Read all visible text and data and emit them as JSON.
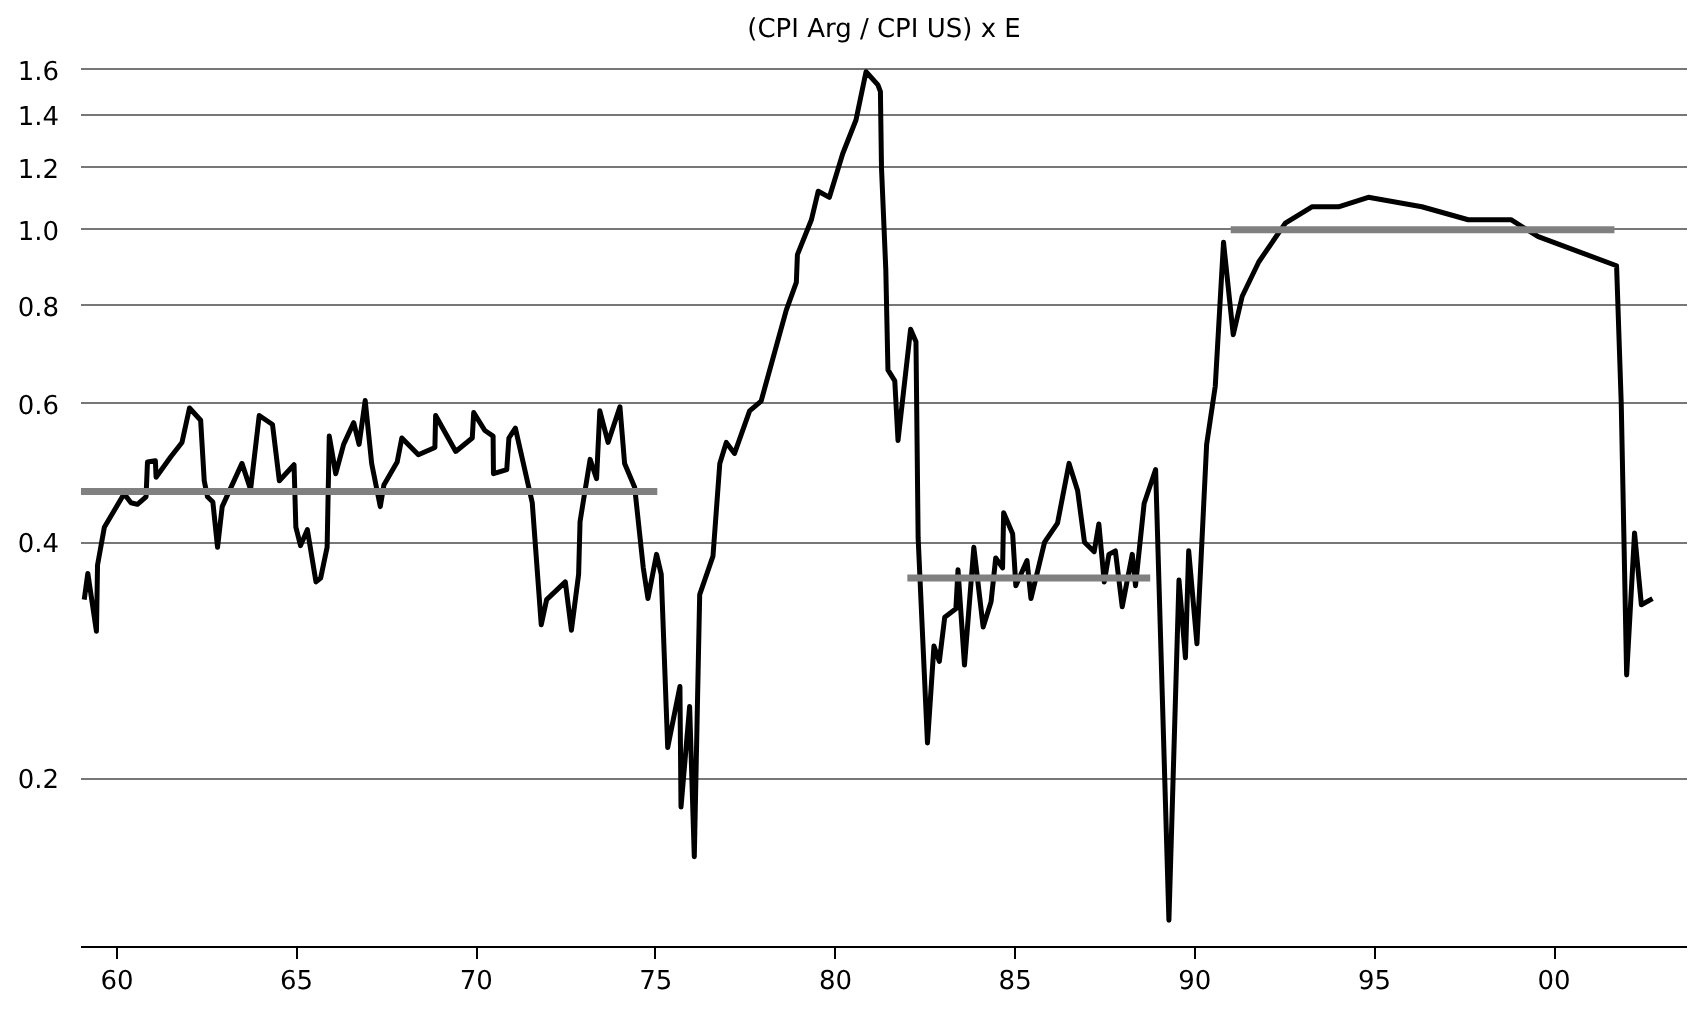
{
  "chart_data": {
    "type": "line",
    "title": "(CPI Arg / CPI US) x E",
    "log": "y",
    "grid": "y",
    "marker": "none",
    "line_style": "solid",
    "xlim": [
      1959.0,
      2003.7
    ],
    "ylim": [
      0.122,
      1.67
    ],
    "xticks": [
      {
        "value": 1960,
        "label": "60"
      },
      {
        "value": 1965,
        "label": "65"
      },
      {
        "value": 1970,
        "label": "70"
      },
      {
        "value": 1975,
        "label": "75"
      },
      {
        "value": 1980,
        "label": "80"
      },
      {
        "value": 1985,
        "label": "85"
      },
      {
        "value": 1990,
        "label": "90"
      },
      {
        "value": 1995,
        "label": "95"
      },
      {
        "value": 2000,
        "label": "00"
      }
    ],
    "yticks": [
      0.2,
      0.4,
      0.6,
      0.8,
      {
        "value": 1.0,
        "label": "1.0"
      },
      1.2,
      1.4,
      1.6
    ],
    "series": [
      {
        "color": "#000000",
        "x": [
          1959.09,
          1959.19,
          1959.43,
          1959.46,
          1959.65,
          1960.2,
          1960.39,
          1960.57,
          1960.81,
          1960.85,
          1961.07,
          1961.09,
          1961.5,
          1961.81,
          1962.02,
          1962.33,
          1962.43,
          1962.52,
          1962.67,
          1962.8,
          1962.93,
          1963.48,
          1963.72,
          1963.96,
          1964.33,
          1964.52,
          1964.93,
          1964.98,
          1965.11,
          1965.3,
          1965.54,
          1965.67,
          1965.85,
          1965.91,
          1966.09,
          1966.31,
          1966.59,
          1966.74,
          1966.91,
          1967.09,
          1967.33,
          1967.43,
          1967.8,
          1967.93,
          1968.39,
          1968.85,
          1968.87,
          1969.43,
          1969.89,
          1969.93,
          1970.24,
          1970.47,
          1970.48,
          1970.85,
          1970.91,
          1971.09,
          1971.56,
          1971.81,
          1971.96,
          1972.48,
          1972.65,
          1972.85,
          1972.89,
          1973.17,
          1973.35,
          1973.44,
          1973.67,
          1974.0,
          1974.13,
          1974.41,
          1974.65,
          1974.78,
          1975.02,
          1975.15,
          1975.33,
          1975.67,
          1975.7,
          1975.94,
          1976.07,
          1976.22,
          1976.59,
          1976.78,
          1976.96,
          1977.19,
          1977.61,
          1977.93,
          1978.63,
          1978.91,
          1978.94,
          1979.33,
          1979.52,
          1979.83,
          1980.2,
          1980.57,
          1980.85,
          1981.18,
          1981.25,
          1981.28,
          1981.4,
          1981.46,
          1981.65,
          1981.74,
          1982.09,
          1982.24,
          1982.3,
          1982.56,
          1982.74,
          1982.89,
          1983.04,
          1983.35,
          1983.41,
          1983.59,
          1983.85,
          1984.11,
          1984.33,
          1984.46,
          1984.65,
          1984.68,
          1984.93,
          1985.02,
          1985.33,
          1985.44,
          1985.82,
          1986.18,
          1986.5,
          1986.74,
          1986.93,
          1987.2,
          1987.33,
          1987.48,
          1987.61,
          1987.79,
          1987.98,
          1988.26,
          1988.35,
          1988.59,
          1988.91,
          1989.28,
          1989.56,
          1989.74,
          1989.83,
          1990.06,
          1990.33,
          1990.57,
          1990.8,
          1991.07,
          1991.32,
          1991.78,
          1992.52,
          1993.26,
          1994.0,
          1994.83,
          1996.32,
          1997.61,
          1998.8,
          1999.56,
          2001.74,
          2001.87,
          2002.02,
          2002.24,
          2002.43,
          2002.74
        ],
        "values": [
          0.338,
          0.365,
          0.308,
          0.374,
          0.418,
          0.461,
          0.449,
          0.447,
          0.457,
          0.506,
          0.508,
          0.484,
          0.514,
          0.536,
          0.593,
          0.572,
          0.479,
          0.457,
          0.45,
          0.394,
          0.444,
          0.504,
          0.467,
          0.58,
          0.565,
          0.479,
          0.502,
          0.418,
          0.396,
          0.415,
          0.356,
          0.36,
          0.394,
          0.546,
          0.489,
          0.533,
          0.568,
          0.533,
          0.606,
          0.504,
          0.444,
          0.473,
          0.506,
          0.543,
          0.517,
          0.528,
          0.58,
          0.522,
          0.543,
          0.585,
          0.555,
          0.546,
          0.489,
          0.495,
          0.543,
          0.559,
          0.449,
          0.314,
          0.338,
          0.356,
          0.309,
          0.364,
          0.425,
          0.51,
          0.482,
          0.588,
          0.536,
          0.595,
          0.504,
          0.47,
          0.371,
          0.339,
          0.386,
          0.364,
          0.219,
          0.262,
          0.184,
          0.247,
          0.159,
          0.343,
          0.384,
          0.504,
          0.536,
          0.519,
          0.588,
          0.605,
          0.79,
          0.857,
          0.93,
          1.03,
          1.12,
          1.1,
          1.25,
          1.38,
          1.59,
          1.53,
          1.5,
          1.2,
          0.89,
          0.663,
          0.642,
          0.539,
          0.747,
          0.72,
          0.405,
          0.222,
          0.295,
          0.282,
          0.321,
          0.329,
          0.369,
          0.279,
          0.394,
          0.312,
          0.336,
          0.382,
          0.371,
          0.436,
          0.41,
          0.352,
          0.379,
          0.339,
          0.4,
          0.423,
          0.504,
          0.465,
          0.4,
          0.389,
          0.422,
          0.356,
          0.386,
          0.39,
          0.331,
          0.386,
          0.352,
          0.448,
          0.495,
          0.132,
          0.358,
          0.285,
          0.39,
          0.297,
          0.533,
          0.632,
          0.964,
          0.735,
          0.823,
          0.91,
          1.02,
          1.07,
          1.07,
          1.1,
          1.07,
          1.03,
          1.03,
          0.98,
          0.9,
          0.6,
          0.271,
          0.411,
          0.333,
          0.339
        ]
      },
      {
        "color": "#808080",
        "x": [
          1959.0,
          1975.04
        ],
        "values": [
          0.464,
          0.464
        ]
      },
      {
        "color": "#808080",
        "x": [
          1982.0,
          1988.76
        ],
        "values": [
          0.36,
          0.36
        ]
      },
      {
        "color": "#808080",
        "x": [
          1991.0,
          2001.68
        ],
        "values": [
          1.0,
          1.0
        ]
      }
    ]
  }
}
